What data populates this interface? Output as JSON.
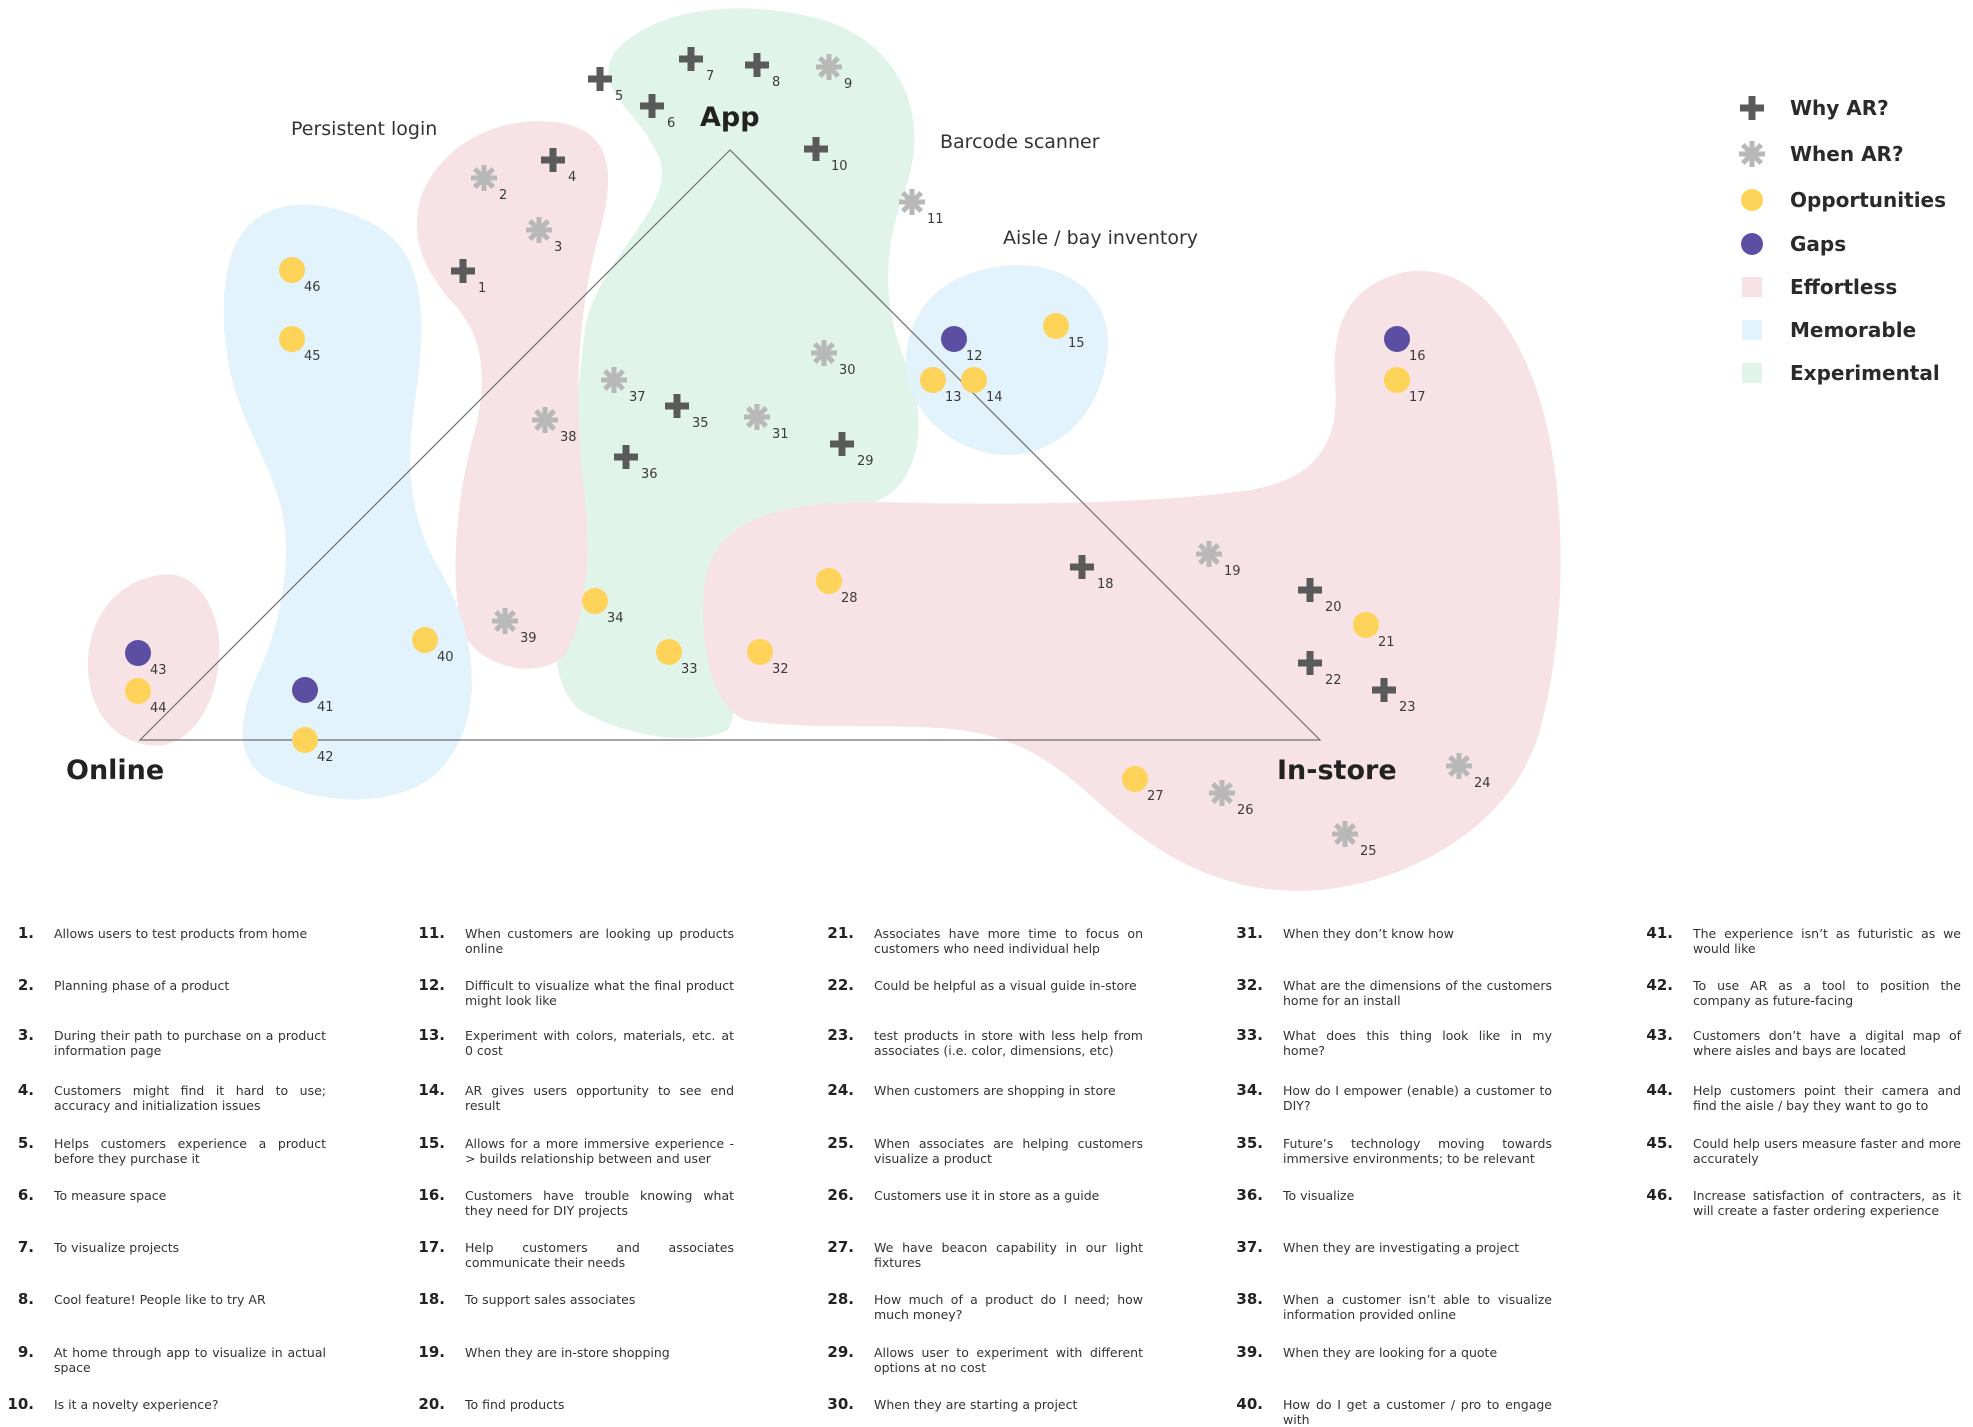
{
  "vertices": {
    "app": "App",
    "online": "Online",
    "instore": "In-store"
  },
  "cluster_labels": {
    "persistent_login": "Persistent login",
    "barcode_scanner": "Barcode scanner",
    "aisle_bay_inventory": "Aisle / bay inventory"
  },
  "legend": {
    "why_ar": "Why AR?",
    "when_ar": "When AR?",
    "opportunities": "Opportunities",
    "gaps": "Gaps",
    "effortless": "Effortless",
    "memorable": "Memorable",
    "experimental": "Experimental"
  },
  "colors": {
    "why_ar": "#5a5a5a",
    "when_ar": "#b8b8b8",
    "opportunities": "#fdd35a",
    "gaps": "#5b4ea3",
    "effortless": "#f7e3e5",
    "memorable": "#e3f3fb",
    "experimental": "#e1f4ea"
  },
  "markers": [
    {
      "n": "1",
      "type": "why_ar"
    },
    {
      "n": "2",
      "type": "when_ar"
    },
    {
      "n": "3",
      "type": "when_ar"
    },
    {
      "n": "4",
      "type": "why_ar"
    },
    {
      "n": "5",
      "type": "why_ar"
    },
    {
      "n": "6",
      "type": "why_ar"
    },
    {
      "n": "7",
      "type": "why_ar"
    },
    {
      "n": "8",
      "type": "why_ar"
    },
    {
      "n": "9",
      "type": "when_ar"
    },
    {
      "n": "10",
      "type": "why_ar"
    },
    {
      "n": "11",
      "type": "when_ar"
    },
    {
      "n": "12",
      "type": "gaps"
    },
    {
      "n": "13",
      "type": "opportunities"
    },
    {
      "n": "14",
      "type": "opportunities"
    },
    {
      "n": "15",
      "type": "opportunities"
    },
    {
      "n": "16",
      "type": "gaps"
    },
    {
      "n": "17",
      "type": "opportunities"
    },
    {
      "n": "18",
      "type": "why_ar"
    },
    {
      "n": "19",
      "type": "when_ar"
    },
    {
      "n": "20",
      "type": "why_ar"
    },
    {
      "n": "21",
      "type": "opportunities"
    },
    {
      "n": "22",
      "type": "why_ar"
    },
    {
      "n": "23",
      "type": "why_ar"
    },
    {
      "n": "24",
      "type": "when_ar"
    },
    {
      "n": "25",
      "type": "when_ar"
    },
    {
      "n": "26",
      "type": "when_ar"
    },
    {
      "n": "27",
      "type": "opportunities"
    },
    {
      "n": "28",
      "type": "opportunities"
    },
    {
      "n": "29",
      "type": "why_ar"
    },
    {
      "n": "30",
      "type": "when_ar"
    },
    {
      "n": "31",
      "type": "when_ar"
    },
    {
      "n": "32",
      "type": "opportunities"
    },
    {
      "n": "33",
      "type": "opportunities"
    },
    {
      "n": "34",
      "type": "opportunities"
    },
    {
      "n": "35",
      "type": "why_ar"
    },
    {
      "n": "36",
      "type": "why_ar"
    },
    {
      "n": "37",
      "type": "when_ar"
    },
    {
      "n": "38",
      "type": "when_ar"
    },
    {
      "n": "39",
      "type": "when_ar"
    },
    {
      "n": "40",
      "type": "opportunities"
    },
    {
      "n": "41",
      "type": "gaps"
    },
    {
      "n": "42",
      "type": "opportunities"
    },
    {
      "n": "43",
      "type": "gaps"
    },
    {
      "n": "44",
      "type": "opportunities"
    },
    {
      "n": "45",
      "type": "opportunities"
    },
    {
      "n": "46",
      "type": "opportunities"
    }
  ],
  "notes": [
    {
      "num": "1.",
      "text": "Allows users to test products from home"
    },
    {
      "num": "2.",
      "text": "Planning phase of a product"
    },
    {
      "num": "3.",
      "text": "During their path to purchase on a product information page"
    },
    {
      "num": "4.",
      "text": "Customers might find it hard to use; accuracy and initialization issues"
    },
    {
      "num": "5.",
      "text": "Helps customers experience a product before they purchase it"
    },
    {
      "num": "6.",
      "text": "To measure space"
    },
    {
      "num": "7.",
      "text": "To visualize projects"
    },
    {
      "num": "8.",
      "text": "Cool feature! People like to try AR"
    },
    {
      "num": "9.",
      "text": "At home through app to visualize in actual space"
    },
    {
      "num": "10.",
      "text": "Is it a novelty experience?"
    },
    {
      "num": "11.",
      "text": "When customers are looking up products online"
    },
    {
      "num": "12.",
      "text": "Difficult to visualize what the final product might look like"
    },
    {
      "num": "13.",
      "text": "Experiment with colors, materials, etc. at 0 cost"
    },
    {
      "num": "14.",
      "text": "AR gives users opportunity to see end result"
    },
    {
      "num": "15.",
      "text": "Allows for a more immersive experience -> builds relationship between and user"
    },
    {
      "num": "16.",
      "text": "Customers have trouble knowing what they need for DIY projects"
    },
    {
      "num": "17.",
      "text": "Help customers and associates communicate their needs"
    },
    {
      "num": "18.",
      "text": "To support sales associates"
    },
    {
      "num": "19.",
      "text": "When they are in-store shopping"
    },
    {
      "num": "20.",
      "text": "To find products"
    },
    {
      "num": "21.",
      "text": "Associates have more time to focus on customers who need individual help"
    },
    {
      "num": "22.",
      "text": "Could be helpful as a visual guide in-store"
    },
    {
      "num": "23.",
      "text": "test products in store with less help from associates (i.e. color, dimensions, etc)"
    },
    {
      "num": "24.",
      "text": "When customers are shopping in store"
    },
    {
      "num": "25.",
      "text": "When associates are helping customers visualize a product"
    },
    {
      "num": "26.",
      "text": "Customers use it in store as a guide"
    },
    {
      "num": "27.",
      "text": "We have beacon capability in our light fixtures"
    },
    {
      "num": "28.",
      "text": "How much of a product do I need; how much money?"
    },
    {
      "num": "29.",
      "text": "Allows user to experiment with different options at no cost"
    },
    {
      "num": "30.",
      "text": "When they are starting a project"
    },
    {
      "num": "31.",
      "text": "When they don’t know how"
    },
    {
      "num": "32.",
      "text": "What are the dimensions of the customers home for an install"
    },
    {
      "num": "33.",
      "text": "What does this thing look like in my home?"
    },
    {
      "num": "34.",
      "text": "How do I empower (enable) a customer to DIY?"
    },
    {
      "num": "35.",
      "text": "Future’s technology moving towards immersive environments; to be relevant"
    },
    {
      "num": "36.",
      "text": "To visualize"
    },
    {
      "num": "37.",
      "text": "When they are investigating a project"
    },
    {
      "num": "38.",
      "text": "When a customer isn’t able to visualize information provided online"
    },
    {
      "num": "39.",
      "text": "When they are looking for a quote"
    },
    {
      "num": "40.",
      "text": "How do I get a customer / pro to engage with"
    },
    {
      "num": "41.",
      "text": "The experience isn’t as futuristic as we would like"
    },
    {
      "num": "42.",
      "text": "To use AR as a tool to position the company as future-facing"
    },
    {
      "num": "43.",
      "text": "Customers don’t have a digital map of where aisles and bays are located"
    },
    {
      "num": "44.",
      "text": "Help customers point their camera and find the aisle / bay they want to go to"
    },
    {
      "num": "45.",
      "text": "Could help users measure faster and more accurately"
    },
    {
      "num": "46.",
      "text": "Increase satisfaction of contracters, as it will create a faster ordering experience"
    }
  ]
}
